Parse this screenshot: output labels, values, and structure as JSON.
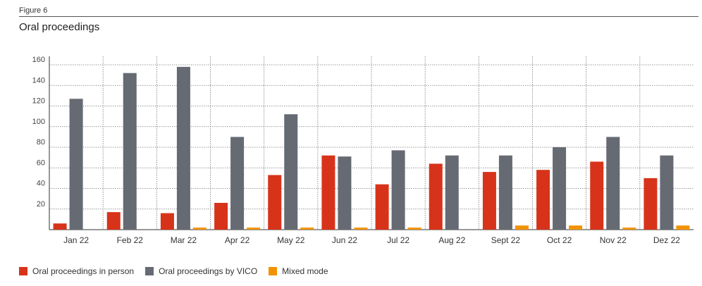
{
  "figure_label": "Figure 6",
  "title": "Oral proceedings",
  "colors": {
    "in_person": "#d7331a",
    "vico": "#666a73",
    "mixed": "#f39200"
  },
  "chart_data": {
    "type": "bar",
    "title": "Oral proceedings",
    "xlabel": "",
    "ylabel": "",
    "ylim": [
      0,
      160
    ],
    "yticks": [
      20,
      40,
      60,
      80,
      100,
      120,
      140,
      160
    ],
    "grid": true,
    "legend_position": "bottom-left",
    "categories": [
      "Jan 22",
      "Feb 22",
      "Mar 22",
      "Apr 22",
      "May 22",
      "Jun 22",
      "Jul 22",
      "Aug 22",
      "Sept 22",
      "Oct 22",
      "Nov 22",
      "Dez 22"
    ],
    "series": [
      {
        "name": "Oral proceedings in person",
        "color": "#d7331a",
        "values": [
          6,
          17,
          16,
          26,
          53,
          72,
          44,
          64,
          56,
          58,
          66,
          50
        ]
      },
      {
        "name": "Oral proceedings by VICO",
        "color": "#666a73",
        "values": [
          127,
          152,
          158,
          90,
          112,
          71,
          77,
          72,
          72,
          80,
          90,
          72
        ]
      },
      {
        "name": "Mixed mode",
        "color": "#f39200",
        "values": [
          0,
          0,
          2,
          2,
          2,
          2,
          2,
          0,
          4,
          4,
          2,
          4
        ]
      }
    ]
  }
}
